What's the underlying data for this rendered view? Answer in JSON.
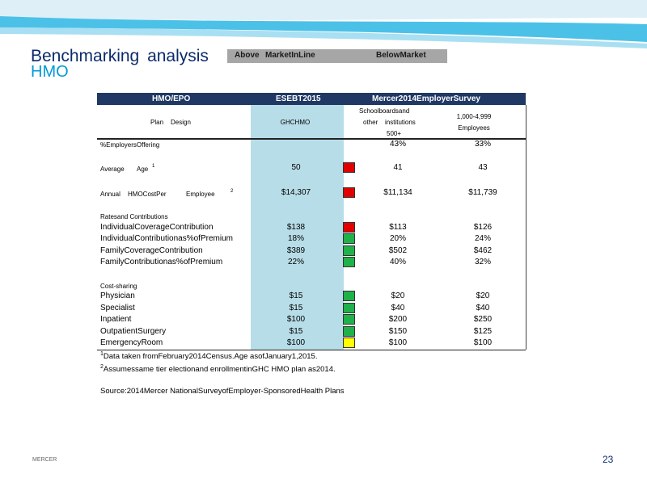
{
  "slide": {
    "title": "Benchmarking  analysis",
    "subtitle": "HMO",
    "footer_brand": "MERCER",
    "page_number": "23",
    "colors": {
      "title": "#0b2b6b",
      "subtitle": "#009ad7",
      "header_bg": "#1f3864",
      "shade": "#b7dde8"
    }
  },
  "legend": {
    "above": "Above",
    "in_line": "MarketInLine",
    "below": "BelowMarket",
    "colors": {
      "above": "#e00000",
      "in_line": "#1fb14a",
      "below": "#ffff00"
    }
  },
  "table": {
    "header": {
      "col1": "HMO/EPO",
      "col2": "ESEBT2015",
      "col3": "Mercer2014EmployerSurvey"
    },
    "subheader": {
      "plan_1": "Plan",
      "plan_2": "Design",
      "col2": "GHCHMO",
      "col3_1": "Schoolboardsand",
      "col3_2a": "other",
      "col3_2b": "institutions",
      "col3_3": "500+",
      "col4_1": "1,000-4,999",
      "col4_2": "Employees"
    },
    "section_rates": "Ratesand       Contributions",
    "section_cost": "Cost-sharing",
    "rows": {
      "offering": {
        "label": "%EmployersOffering",
        "ghc": "",
        "school": "43%",
        "emp": "33%"
      },
      "age": {
        "label_a": "Average",
        "label_b": "Age",
        "sup": "1",
        "ghc": "50",
        "school": "41",
        "emp": "43",
        "flag": "above"
      },
      "cost": {
        "label_a": "Annual",
        "label_b": "HMOCostPer",
        "label_c": "Employee",
        "sup": "2",
        "ghc": "$14,307",
        "school": "$11,134",
        "emp": "$11,739",
        "flag": "above"
      },
      "r1": {
        "label": "IndividualCoverageContribution",
        "ghc": "$138",
        "school": "$113",
        "emp": "$126",
        "flag": "above"
      },
      "r2": {
        "label": "IndividualContributionas%ofPremium",
        "ghc": "18%",
        "school": "20%",
        "emp": "24%",
        "flag": "in_line"
      },
      "r3": {
        "label": "FamilyCoverageContribution",
        "ghc": "$389",
        "school": "$502",
        "emp": "$462",
        "flag": "in_line"
      },
      "r4": {
        "label": "FamilyContributionas%ofPremium",
        "ghc": "22%",
        "school": "40%",
        "emp": "32%",
        "flag": "in_line"
      },
      "c1": {
        "label": "Physician",
        "ghc": "$15",
        "school": "$20",
        "emp": "$20",
        "flag": "in_line"
      },
      "c2": {
        "label": "Specialist",
        "ghc": "$15",
        "school": "$40",
        "emp": "$40",
        "flag": "in_line"
      },
      "c3": {
        "label": "Inpatient",
        "ghc": "$100",
        "school": "$200",
        "emp": "$250",
        "flag": "in_line"
      },
      "c4": {
        "label": "OutpatientSurgery",
        "ghc": "$15",
        "school": "$150",
        "emp": "$125",
        "flag": "in_line"
      },
      "c5": {
        "label": "EmergencyRoom",
        "ghc": "$100",
        "school": "$100",
        "emp": "$100",
        "flag": "below"
      }
    }
  },
  "notes": {
    "n1_sup": "1",
    "n1": "Data taken fromFebruary2014Census.Age asofJanuary1,2015.",
    "n2_sup": "2",
    "n2": "Assumessame  tier electionand enrollmentinGHC HMO plan as2014.",
    "source": "Source:2014Mercer NationalSurveyofEmployer-SponsoredHealth Plans"
  }
}
